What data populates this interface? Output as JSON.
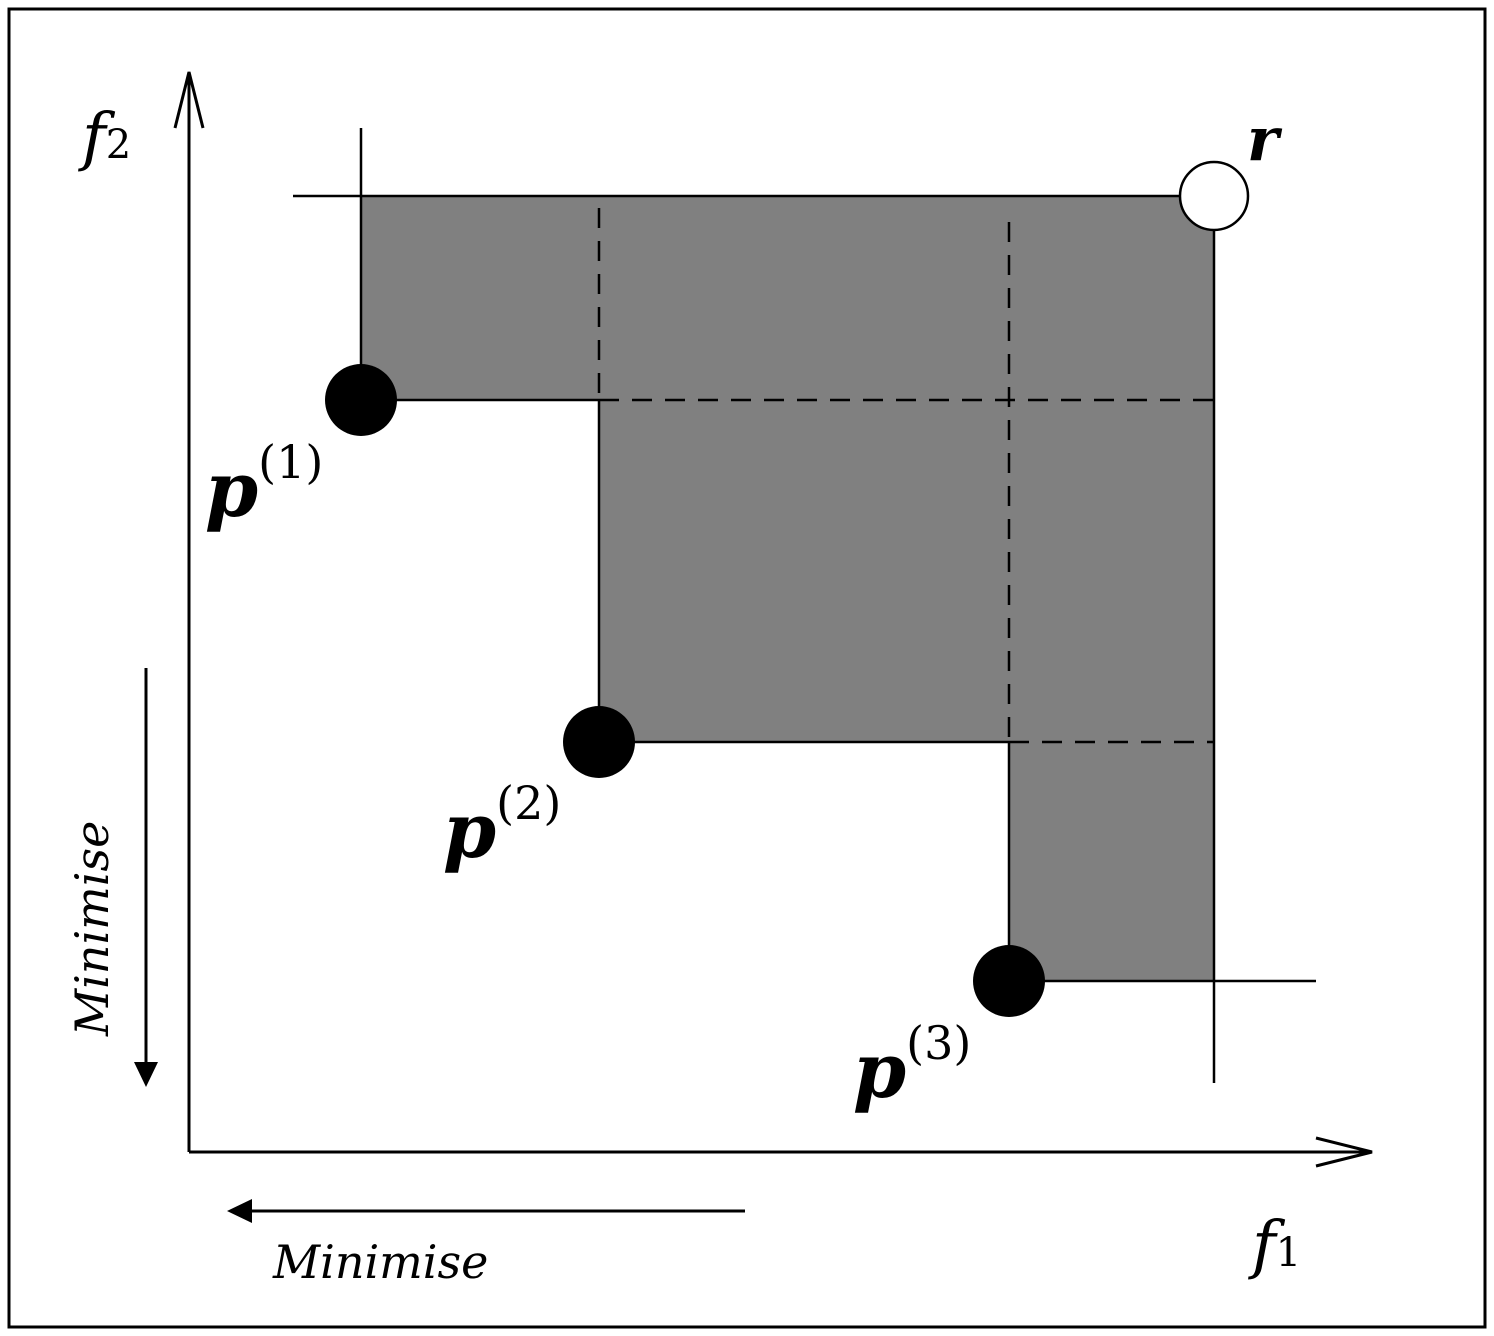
{
  "axes": {
    "x_label": "f",
    "x_label_sub": "1",
    "y_label": "f",
    "y_label_sub": "2"
  },
  "directions": {
    "x_text": "Minimise",
    "y_text": "Minimise"
  },
  "reference_point": {
    "label": "r"
  },
  "points": [
    {
      "base": "p",
      "sup": "(1)"
    },
    {
      "base": "p",
      "sup": "(2)"
    },
    {
      "base": "p",
      "sup": "(3)"
    }
  ],
  "colors": {
    "dominated_region": "#808080",
    "point_fill": "#000000",
    "reference_fill": "#ffffff",
    "line": "#000000",
    "frame": "#000000"
  }
}
